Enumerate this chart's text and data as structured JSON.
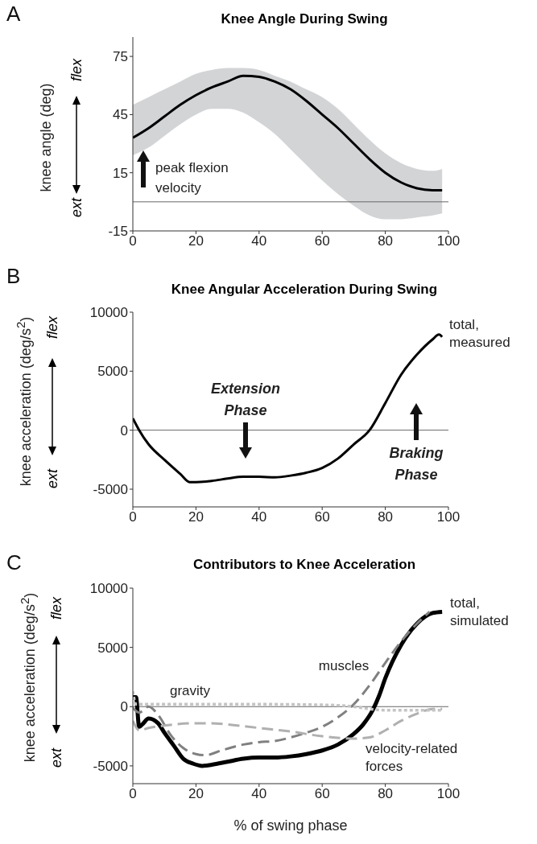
{
  "chart_data": [
    {
      "type": "line",
      "title": "Knee Angle During Swing",
      "ylabel": "knee angle (deg)",
      "xlim": [
        0,
        100
      ],
      "xticks": [
        0,
        20,
        40,
        60,
        80,
        100
      ],
      "ylim": [
        -15,
        85
      ],
      "yticks": [
        75,
        45,
        15,
        -15
      ],
      "marker": "none",
      "annotations": [
        "A",
        "flex",
        "ext",
        "peak flexion velocity"
      ],
      "ref_lines": [
        {
          "axis": "y",
          "value": 0,
          "color": "#666666"
        }
      ],
      "series": [
        {
          "color": "#000000",
          "line_style": "solid",
          "x": [
            0,
            5,
            10,
            15,
            20,
            25,
            30,
            35,
            40,
            45,
            50,
            55,
            60,
            65,
            70,
            75,
            80,
            85,
            90,
            95,
            98
          ],
          "values": [
            33,
            38,
            44,
            50,
            55,
            59,
            62,
            65,
            64.5,
            62,
            58,
            52,
            45,
            38,
            30,
            22,
            15,
            10,
            7,
            6,
            6
          ],
          "lower": [
            24,
            28,
            34,
            40,
            45,
            48,
            48,
            46,
            41,
            35,
            27,
            19,
            11,
            4,
            -2,
            -7,
            -9,
            -9,
            -8,
            -7,
            -6
          ],
          "upper": [
            50,
            54,
            58,
            62,
            66,
            68,
            69,
            69,
            68,
            65,
            62,
            58,
            54,
            48,
            40,
            32,
            25,
            20,
            17,
            16,
            17
          ]
        }
      ]
    },
    {
      "type": "line",
      "title": "Knee Angular Acceleration During Swing",
      "ylabel": "knee acceleration (deg/s$^{2}$)",
      "xlim": [
        0,
        100
      ],
      "xticks": [
        0,
        20,
        40,
        60,
        80,
        100
      ],
      "ylim": [
        -6500,
        10000
      ],
      "yticks": [
        10000,
        5000,
        0,
        -5000
      ],
      "marker": "none",
      "annotations": [
        "B",
        "flex",
        "ext",
        "Extension Phase",
        "Braking Phase"
      ],
      "ref_lines": [
        {
          "axis": "y",
          "value": 0,
          "color": "#666666"
        }
      ],
      "series": [
        {
          "name": "total, measured",
          "color": "#000000",
          "line_style": "solid",
          "x": [
            0,
            2,
            5,
            10,
            15,
            18,
            20,
            25,
            30,
            35,
            40,
            45,
            50,
            55,
            60,
            65,
            70,
            75,
            80,
            85,
            90,
            95,
            97,
            98
          ],
          "values": [
            1000,
            0,
            -1200,
            -2500,
            -3700,
            -4400,
            -4400,
            -4300,
            -4100,
            -3950,
            -3950,
            -4000,
            -3850,
            -3600,
            -3200,
            -2400,
            -1200,
            0,
            2300,
            4700,
            6400,
            7700,
            8100,
            7900
          ]
        }
      ]
    },
    {
      "type": "line",
      "title": "Contributors to Knee Acceleration",
      "xlabel": "% of swing phase",
      "ylabel": "knee acceleration (deg/s$^{2}$)",
      "xlim": [
        0,
        100
      ],
      "xticks": [
        0,
        20,
        40,
        60,
        80,
        100
      ],
      "ylim": [
        -6500,
        10000
      ],
      "yticks": [
        10000,
        5000,
        0,
        -5000
      ],
      "marker": "none",
      "annotations": [
        "C",
        "flex",
        "ext"
      ],
      "ref_lines": [
        {
          "axis": "y",
          "value": 0,
          "color": "#666666"
        }
      ],
      "series": [
        {
          "name": "total, simulated",
          "color": "#000000",
          "line_style": "solid",
          "x": [
            0,
            1,
            2,
            3,
            5,
            8,
            10,
            13,
            16,
            19,
            22,
            25,
            30,
            35,
            40,
            45,
            50,
            55,
            60,
            65,
            70,
            73,
            76,
            78,
            80,
            85,
            90,
            95,
            98
          ],
          "values": [
            800,
            800,
            -1700,
            -1500,
            -1000,
            -1400,
            -2200,
            -3300,
            -4400,
            -4800,
            -5000,
            -4900,
            -4650,
            -4400,
            -4300,
            -4300,
            -4200,
            -4000,
            -3700,
            -3200,
            -2300,
            -1500,
            -300,
            900,
            2400,
            5200,
            7000,
            7900,
            8000
          ]
        },
        {
          "name": "muscles",
          "color": "#808080",
          "line_style": "dashed",
          "x": [
            0,
            2,
            5,
            8,
            12,
            16,
            20,
            23,
            28,
            35,
            40,
            45,
            50,
            55,
            60,
            65,
            70,
            75,
            80,
            85,
            90,
            94
          ],
          "values": [
            -100,
            -500,
            0,
            -700,
            -2400,
            -3500,
            -4000,
            -4100,
            -3700,
            -3200,
            -3000,
            -2900,
            -2600,
            -2200,
            -1700,
            -900,
            200,
            1800,
            3700,
            5500,
            7000,
            8000
          ]
        },
        {
          "name": "velocity-related forces",
          "color": "#b0b0b0",
          "line_style": "dashed",
          "x": [
            0,
            2,
            5,
            10,
            20,
            25,
            30,
            40,
            50,
            60,
            70,
            75,
            80,
            85,
            90,
            95,
            98
          ],
          "values": [
            -1200,
            -2000,
            -1800,
            -1600,
            -1400,
            -1400,
            -1500,
            -1800,
            -2100,
            -2500,
            -2700,
            -2600,
            -2000,
            -1200,
            -600,
            -200,
            -200
          ]
        },
        {
          "name": "gravity",
          "color": "#c4c4c4",
          "line_style": "dotted",
          "x": [
            0,
            1,
            5,
            20,
            40,
            60,
            70,
            75,
            80,
            90,
            98
          ],
          "values": [
            1300,
            200,
            200,
            200,
            200,
            150,
            0,
            -200,
            -300,
            -300,
            -300
          ]
        }
      ]
    }
  ]
}
